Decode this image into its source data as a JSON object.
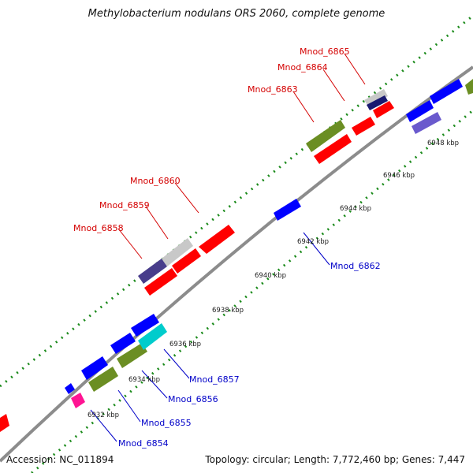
{
  "title": "Methylobacterium nodulans ORS 2060, complete genome",
  "footer": {
    "accession": "Accession: NC_011894",
    "summary": "Topology: circular; Length: 7,772,460 bp; Genes: 7,447"
  },
  "colors": {
    "backbone": "#8c8c8c",
    "tick_dots": "#1a8a1a",
    "top_label": "#d40000",
    "bottom_label": "#0000c8",
    "tick_text": "#222222"
  },
  "kbp_labels": [
    "6932 kbp",
    "6934 kbp",
    "6936 kbp",
    "6938 kbp",
    "6940 kbp",
    "6942 kbp",
    "6944 kbp",
    "6946 kbp",
    "6948 kbp"
  ],
  "top_gene_labels": [
    "Mnod_6858",
    "Mnod_6859",
    "Mnod_6860",
    "Mnod_6863",
    "Mnod_6864",
    "Mnod_6865"
  ],
  "bottom_gene_labels": [
    "Mnod_6854",
    "Mnod_6855",
    "Mnod_6856",
    "Mnod_6857",
    "Mnod_6862"
  ],
  "gene_colors": [
    "#ff0000",
    "#0000ff",
    "#6b8e23",
    "#00cccc",
    "#ff1493",
    "#483d8b",
    "#c8c8c8",
    "#191970",
    "#6a5acd"
  ]
}
